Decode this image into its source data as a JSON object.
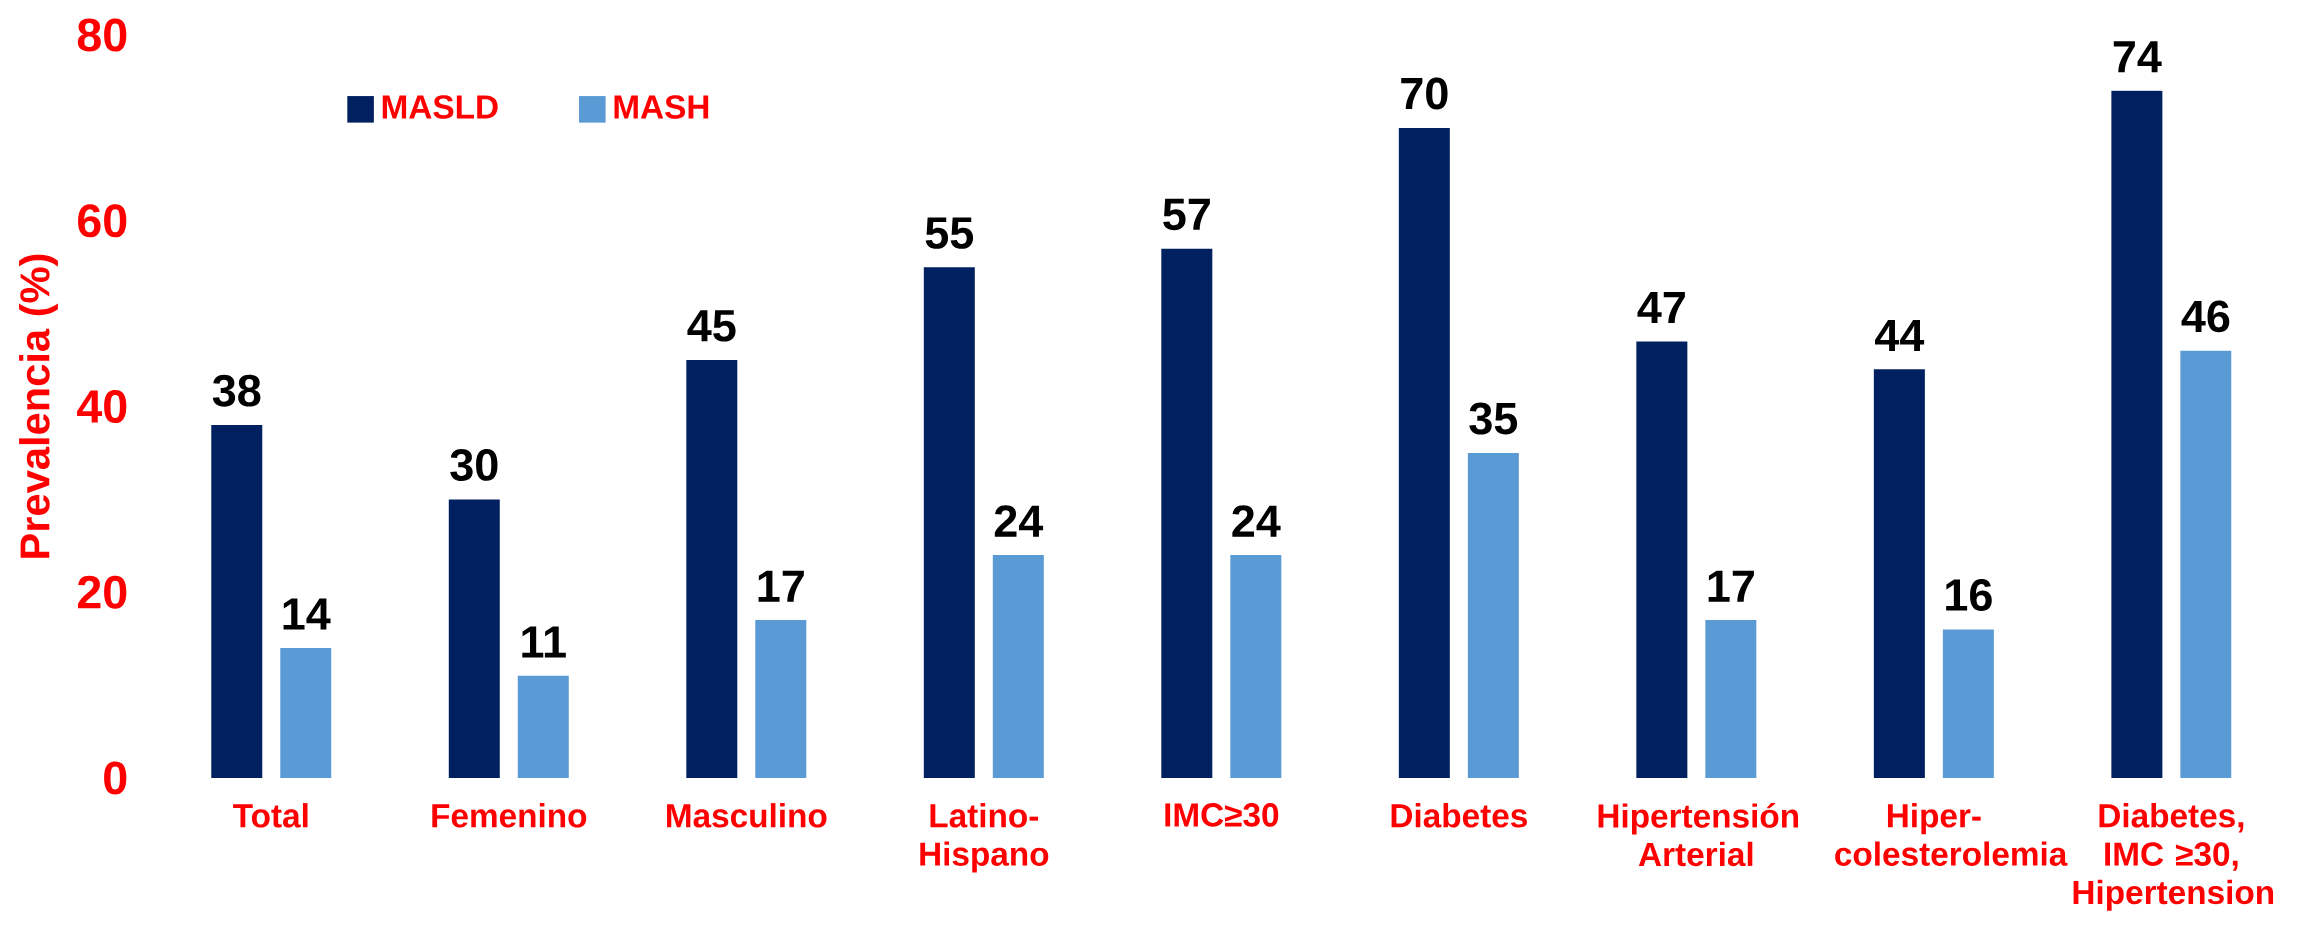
{
  "chart_data": {
    "type": "bar",
    "ylabel": "Prevalencia (%)",
    "categories": [
      "Total",
      "Femenino",
      "Masculino",
      "Latino-Hispano",
      "IMC≥30",
      "Diabetes",
      "Hipertensión Arterial",
      "Hiper-colesterolemia",
      "Diabetes, IMC ≥30, Hipertension"
    ],
    "series": [
      {
        "name": "MASLD",
        "color": "#002060",
        "values": [
          38,
          30,
          45,
          55,
          57,
          70,
          47,
          44,
          74
        ]
      },
      {
        "name": "MASH",
        "color": "#5b9bd5",
        "values": [
          14,
          11,
          17,
          24,
          24,
          35,
          17,
          16,
          46
        ]
      }
    ],
    "ylim": [
      0,
      80
    ],
    "yticks": [
      0,
      20,
      40,
      60,
      80
    ],
    "data_labels": true,
    "legend": "top left",
    "grid": false
  }
}
